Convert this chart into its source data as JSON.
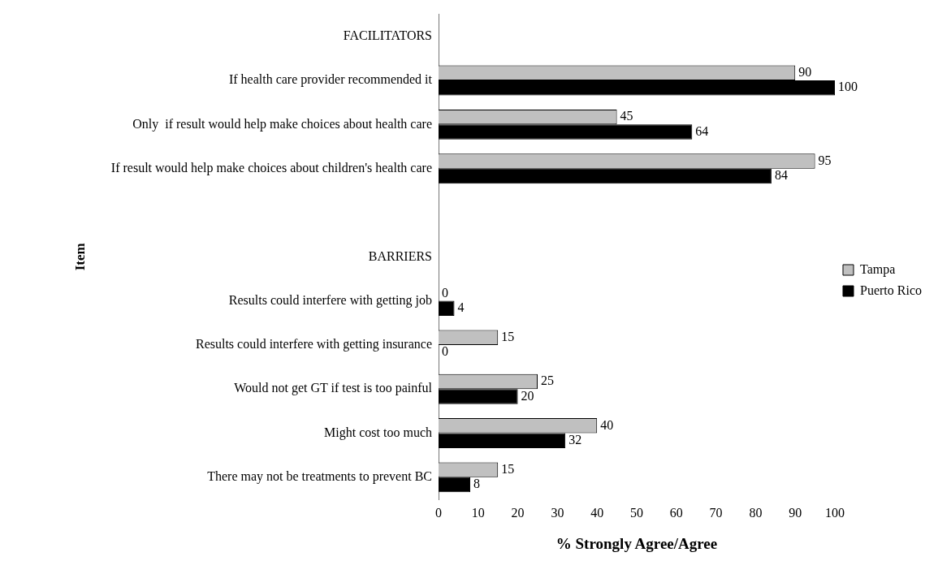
{
  "chart_data": {
    "type": "bar",
    "orientation": "horizontal",
    "xlabel": "% Strongly Agree/Agree",
    "ylabel": "Item",
    "categories": [
      "FACILITATORS",
      "If health care provider recommended it",
      "Only  if result would help make choices about health care",
      "If result would help make choices about children's health care",
      null,
      "BARRIERS",
      "Results could interfere with getting job",
      "Results could interfere with getting insurance",
      "Would not get GT if test is too painful",
      "Might cost too much",
      "There may not be treatments to prevent BC"
    ],
    "series": [
      {
        "name": "Tampa",
        "color": "#c0c0c0",
        "values": [
          null,
          90,
          45,
          95,
          null,
          null,
          0,
          15,
          25,
          40,
          15
        ]
      },
      {
        "name": "Puerto Rico",
        "color": "#000000",
        "values": [
          null,
          100,
          64,
          84,
          null,
          null,
          4,
          0,
          20,
          32,
          8
        ]
      }
    ],
    "xlim": [
      0,
      100
    ],
    "xticks": [
      0,
      10,
      20,
      30,
      40,
      50,
      60,
      70,
      80,
      90,
      100
    ],
    "grid": false,
    "legend": "right",
    "data_labels": true
  }
}
